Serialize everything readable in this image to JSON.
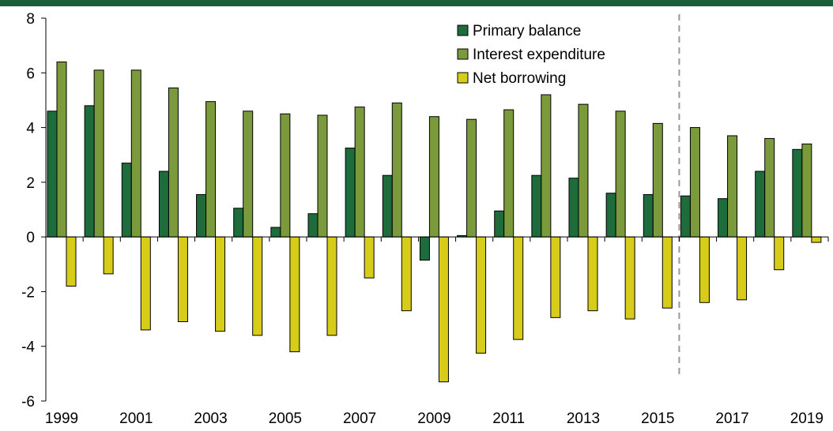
{
  "colors": {
    "top_bar": "#1b5e3b",
    "primary_balance": "#1e6b3c",
    "interest_expenditure": "#7a9a3c",
    "net_borrowing": "#d8cc1a",
    "forecast_line": "#999999"
  },
  "chart_data": {
    "type": "bar",
    "title": "",
    "xlabel": "",
    "ylabel": "",
    "ylim": [
      -6,
      8
    ],
    "yticks": [
      "-6",
      "-4",
      "-2",
      "0",
      "2",
      "4",
      "6",
      "8"
    ],
    "categories": [
      "1999",
      "2000",
      "2001",
      "2002",
      "2003",
      "2004",
      "2005",
      "2006",
      "2007",
      "2008",
      "2009",
      "2010",
      "2011",
      "2012",
      "2013",
      "2014",
      "2015",
      "2016",
      "2017",
      "2018",
      "2019"
    ],
    "xtick_labels": [
      "1999",
      "2001",
      "2003",
      "2005",
      "2007",
      "2009",
      "2011",
      "2013",
      "2015",
      "2017",
      "2019"
    ],
    "series": [
      {
        "name": "Primary balance",
        "values": [
          4.6,
          4.8,
          2.7,
          2.4,
          1.55,
          1.05,
          0.35,
          0.85,
          3.25,
          2.25,
          -0.85,
          0.05,
          0.95,
          2.25,
          2.15,
          1.6,
          1.55,
          1.5,
          1.4,
          2.4,
          3.2
        ]
      },
      {
        "name": "Interest expenditure",
        "values": [
          6.4,
          6.1,
          6.1,
          5.45,
          4.95,
          4.6,
          4.5,
          4.45,
          4.75,
          4.9,
          4.4,
          4.3,
          4.65,
          5.2,
          4.85,
          4.6,
          4.15,
          4.0,
          3.7,
          3.6,
          3.4
        ]
      },
      {
        "name": "Net borrowing",
        "values": [
          -1.8,
          -1.35,
          -3.4,
          -3.1,
          -3.45,
          -3.6,
          -4.2,
          -3.6,
          -1.5,
          -2.7,
          -5.3,
          -4.25,
          -3.75,
          -2.95,
          -2.7,
          -3.0,
          -2.6,
          -2.4,
          -2.3,
          -1.2,
          -0.2
        ]
      }
    ],
    "forecast_divider_after": "2015",
    "legend_position": "top-center",
    "grid": false
  }
}
